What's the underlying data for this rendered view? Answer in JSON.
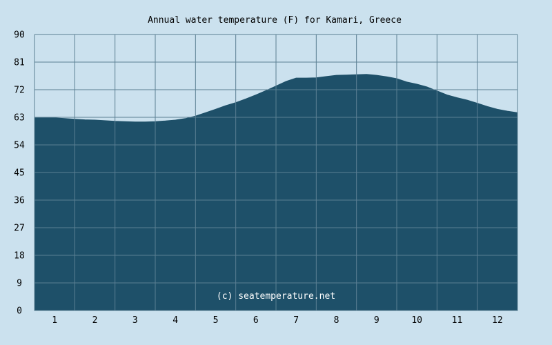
{
  "chart_data": {
    "type": "area",
    "title": "Annual water temperature (F) for Kamari, Greece",
    "credit": "(c) seatemperature.net",
    "xlabel": "",
    "ylabel": "",
    "x_ticks": [
      "1",
      "2",
      "3",
      "4",
      "5",
      "6",
      "7",
      "8",
      "9",
      "10",
      "11",
      "12"
    ],
    "y_ticks": [
      "0",
      "9",
      "18",
      "27",
      "36",
      "45",
      "54",
      "63",
      "72",
      "81",
      "90"
    ],
    "xlim": [
      0.5,
      12.5
    ],
    "ylim": [
      0,
      90
    ],
    "grid": true,
    "colors": {
      "fill": "#1e5069",
      "grid": "#5b7f93",
      "background": "#cbe1ee"
    },
    "series": [
      {
        "x": [
          0.5,
          0.75,
          1.0,
          1.25,
          1.5,
          1.75,
          2.0,
          2.25,
          2.5,
          2.75,
          3.0,
          3.25,
          3.5,
          3.75,
          4.0,
          4.25,
          4.5,
          4.75,
          5.0,
          5.25,
          5.5,
          5.75,
          6.0,
          6.25,
          6.5,
          6.75,
          7.0,
          7.25,
          7.5,
          7.75,
          8.0,
          8.25,
          8.5,
          8.75,
          9.0,
          9.25,
          9.5,
          9.75,
          10.0,
          10.25,
          10.5,
          10.75,
          11.0,
          11.25,
          11.5,
          11.75,
          12.0,
          12.25,
          12.5
        ],
        "y": [
          63.0,
          63.0,
          62.8,
          62.6,
          62.4,
          62.2,
          62.1,
          61.9,
          61.7,
          61.6,
          61.5,
          61.5,
          61.6,
          61.8,
          62.1,
          62.6,
          63.4,
          64.5,
          65.6,
          66.8,
          67.8,
          69.0,
          70.3,
          71.7,
          73.2,
          74.7,
          75.8,
          75.8,
          75.9,
          76.3,
          76.7,
          76.8,
          76.9,
          77.0,
          76.7,
          76.2,
          75.6,
          74.5,
          73.8,
          72.9,
          71.6,
          70.3,
          69.4,
          68.6,
          67.6,
          66.5,
          65.6,
          65.0,
          64.5
        ]
      }
    ]
  }
}
